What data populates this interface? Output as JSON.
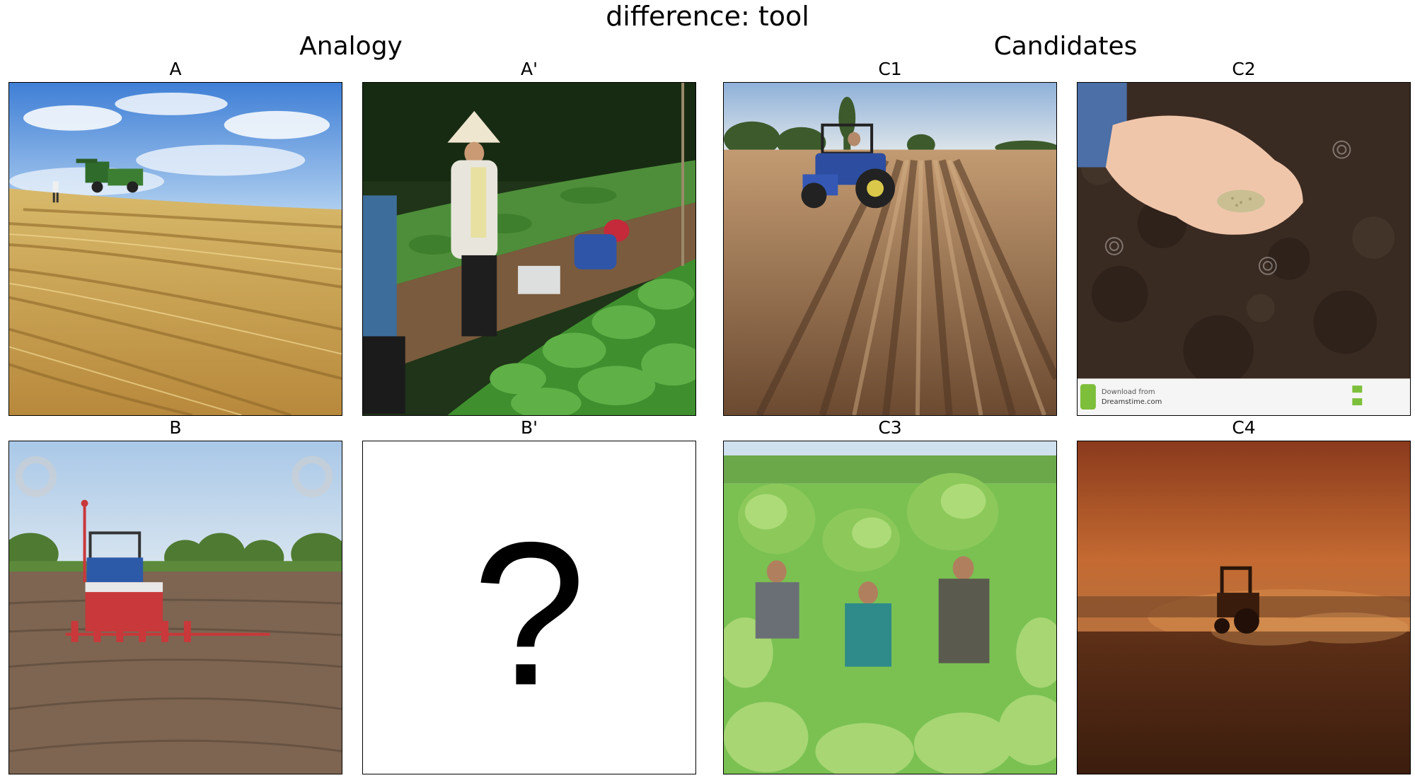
{
  "figure": {
    "title": "difference: tool",
    "groups": {
      "analogy": "Analogy",
      "candidates": "Candidates"
    },
    "panels": {
      "A": {
        "label": "A",
        "content": "combine harvester in wheat stubble field under blue sky"
      },
      "A_prime": {
        "label": "A'",
        "content": "people in conical hats harvesting leafy greens by hand"
      },
      "B": {
        "label": "B",
        "content": "tractor pulling red seed planter across tilled field"
      },
      "B_prime": {
        "label": "B'",
        "content": "unknown",
        "symbol": "?"
      },
      "C1": {
        "label": "C1",
        "content": "blue tractor driving on plowed furrows"
      },
      "C2": {
        "label": "C2",
        "content": "hand holding seeds over dark soil",
        "watermark_text": "Download from",
        "watermark_site": "Dreamstime.com"
      },
      "C3": {
        "label": "C3",
        "content": "farmers carrying tobacco leaves on heads"
      },
      "C4": {
        "label": "C4",
        "content": "tractor in dusty field at sunset"
      }
    }
  }
}
